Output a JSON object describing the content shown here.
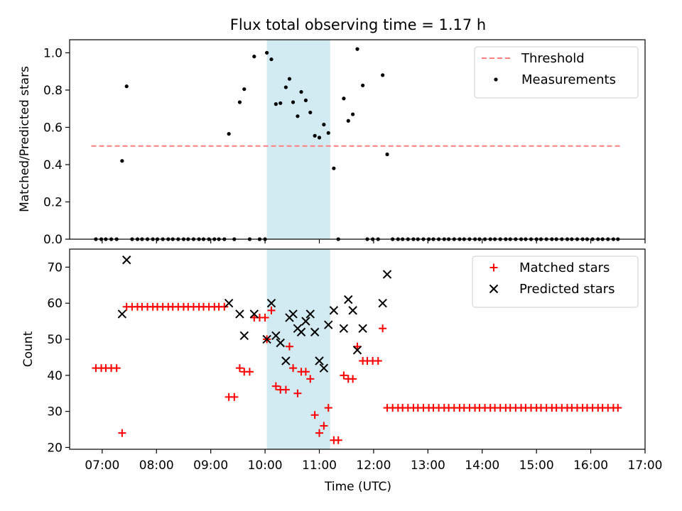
{
  "chart_data": [
    {
      "type": "scatter",
      "title": "Flux total observing time = 1.17 h",
      "xlabel": "",
      "ylabel": "Matched/Predicted stars",
      "xlim": [
        "06:24",
        "17:00"
      ],
      "ylim": [
        0,
        1.07
      ],
      "yticks": [
        0.0,
        0.2,
        0.4,
        0.6,
        0.8,
        1.0
      ],
      "ytick_labels": [
        "0.0",
        "0.2",
        "0.4",
        "0.6",
        "0.8",
        "1.0"
      ],
      "legend_position": "top-right",
      "shaded_span": [
        "10:02",
        "11:12"
      ],
      "shaded_color": "#add8e6",
      "threshold": {
        "name": "Threshold",
        "value": 0.5,
        "x_range": [
          "06:48",
          "16:33"
        ],
        "color": "#ff7f7f",
        "style": "dashed"
      },
      "series": [
        {
          "name": "Measurements",
          "color": "#000000",
          "marker": "dot",
          "points": [
            [
              "06:53",
              0.0
            ],
            [
              "06:59",
              0.0
            ],
            [
              "07:04",
              0.0
            ],
            [
              "07:10",
              0.0
            ],
            [
              "07:16",
              0.0
            ],
            [
              "07:22",
              0.42
            ],
            [
              "07:27",
              0.82
            ],
            [
              "07:33",
              0.0
            ],
            [
              "07:39",
              0.0
            ],
            [
              "07:44",
              0.0
            ],
            [
              "07:50",
              0.0
            ],
            [
              "07:56",
              0.0
            ],
            [
              "08:01",
              0.0
            ],
            [
              "08:07",
              0.0
            ],
            [
              "08:13",
              0.0
            ],
            [
              "08:18",
              0.0
            ],
            [
              "08:24",
              0.0
            ],
            [
              "08:30",
              0.0
            ],
            [
              "08:35",
              0.0
            ],
            [
              "08:41",
              0.0
            ],
            [
              "08:47",
              0.0
            ],
            [
              "08:52",
              0.0
            ],
            [
              "08:58",
              0.0
            ],
            [
              "09:04",
              0.0
            ],
            [
              "09:09",
              0.0
            ],
            [
              "09:15",
              0.0
            ],
            [
              "09:20",
              0.565
            ],
            [
              "09:26",
              0.0
            ],
            [
              "09:32",
              0.735
            ],
            [
              "09:37",
              0.805
            ],
            [
              "09:43",
              0.0
            ],
            [
              "09:48",
              0.98
            ],
            [
              "09:54",
              0.0
            ],
            [
              "10:00",
              0.0
            ],
            [
              "10:02",
              1.0
            ],
            [
              "10:07",
              0.965
            ],
            [
              "10:12",
              0.725
            ],
            [
              "10:17",
              0.73
            ],
            [
              "10:23",
              0.815
            ],
            [
              "10:27",
              0.86
            ],
            [
              "10:31",
              0.735
            ],
            [
              "10:36",
              0.66
            ],
            [
              "10:40",
              0.79
            ],
            [
              "10:45",
              0.745
            ],
            [
              "10:50",
              0.68
            ],
            [
              "10:55",
              0.555
            ],
            [
              "11:00",
              0.545
            ],
            [
              "11:05",
              0.615
            ],
            [
              "11:10",
              0.57
            ],
            [
              "11:16",
              0.38
            ],
            [
              "11:21",
              0.0
            ],
            [
              "11:27",
              0.755
            ],
            [
              "11:32",
              0.635
            ],
            [
              "11:37",
              0.67
            ],
            [
              "11:42",
              1.02
            ],
            [
              "11:48",
              0.825
            ],
            [
              "11:53",
              0.0
            ],
            [
              "11:59",
              0.0
            ],
            [
              "12:05",
              0.0
            ],
            [
              "12:10",
              0.88
            ],
            [
              "12:15",
              0.455
            ],
            [
              "12:21",
              0.0
            ],
            [
              "12:27",
              0.0
            ],
            [
              "12:32",
              0.0
            ],
            [
              "12:38",
              0.0
            ],
            [
              "12:44",
              0.0
            ],
            [
              "12:49",
              0.0
            ],
            [
              "12:55",
              0.0
            ],
            [
              "13:01",
              0.0
            ],
            [
              "13:06",
              0.0
            ],
            [
              "13:12",
              0.0
            ],
            [
              "13:18",
              0.0
            ],
            [
              "13:23",
              0.0
            ],
            [
              "13:29",
              0.0
            ],
            [
              "13:35",
              0.0
            ],
            [
              "13:40",
              0.0
            ],
            [
              "13:46",
              0.0
            ],
            [
              "13:52",
              0.0
            ],
            [
              "13:57",
              0.0
            ],
            [
              "14:03",
              0.0
            ],
            [
              "14:09",
              0.0
            ],
            [
              "14:14",
              0.0
            ],
            [
              "14:20",
              0.0
            ],
            [
              "14:26",
              0.0
            ],
            [
              "14:31",
              0.0
            ],
            [
              "14:37",
              0.0
            ],
            [
              "14:43",
              0.0
            ],
            [
              "14:48",
              0.0
            ],
            [
              "14:54",
              0.0
            ],
            [
              "15:00",
              0.0
            ],
            [
              "15:05",
              0.0
            ],
            [
              "15:11",
              0.0
            ],
            [
              "15:17",
              0.0
            ],
            [
              "15:22",
              0.0
            ],
            [
              "15:28",
              0.0
            ],
            [
              "15:34",
              0.0
            ],
            [
              "15:39",
              0.0
            ],
            [
              "15:45",
              0.0
            ],
            [
              "15:51",
              0.0
            ],
            [
              "15:56",
              0.0
            ],
            [
              "16:02",
              0.0
            ],
            [
              "16:08",
              0.0
            ],
            [
              "16:13",
              0.0
            ],
            [
              "16:19",
              0.0
            ],
            [
              "16:25",
              0.0
            ],
            [
              "16:30",
              0.0
            ]
          ]
        }
      ]
    },
    {
      "type": "scatter",
      "title": "",
      "xlabel": "Time (UTC)",
      "ylabel": "Count",
      "xlim": [
        "06:24",
        "17:00"
      ],
      "ylim": [
        19.5,
        75
      ],
      "yticks": [
        20,
        30,
        40,
        50,
        60,
        70
      ],
      "ytick_labels": [
        "20",
        "30",
        "40",
        "50",
        "60",
        "70"
      ],
      "xtick_labels": [
        "07:00",
        "08:00",
        "09:00",
        "10:00",
        "11:00",
        "12:00",
        "13:00",
        "14:00",
        "15:00",
        "16:00",
        "17:00"
      ],
      "legend_position": "top-right",
      "shaded_span": [
        "10:02",
        "11:12"
      ],
      "shaded_color": "#add8e6",
      "series": [
        {
          "name": "Matched stars",
          "color": "#ff0000",
          "marker": "plus",
          "points": [
            [
              "06:53",
              42
            ],
            [
              "06:59",
              42
            ],
            [
              "07:04",
              42
            ],
            [
              "07:10",
              42
            ],
            [
              "07:16",
              42
            ],
            [
              "07:22",
              24
            ],
            [
              "07:27",
              59
            ],
            [
              "07:33",
              59
            ],
            [
              "07:39",
              59
            ],
            [
              "07:44",
              59
            ],
            [
              "07:50",
              59
            ],
            [
              "07:56",
              59
            ],
            [
              "08:01",
              59
            ],
            [
              "08:07",
              59
            ],
            [
              "08:13",
              59
            ],
            [
              "08:18",
              59
            ],
            [
              "08:24",
              59
            ],
            [
              "08:30",
              59
            ],
            [
              "08:35",
              59
            ],
            [
              "08:41",
              59
            ],
            [
              "08:47",
              59
            ],
            [
              "08:52",
              59
            ],
            [
              "08:58",
              59
            ],
            [
              "09:04",
              59
            ],
            [
              "09:09",
              59
            ],
            [
              "09:15",
              59
            ],
            [
              "09:20",
              34
            ],
            [
              "09:26",
              34
            ],
            [
              "09:32",
              42
            ],
            [
              "09:37",
              41
            ],
            [
              "09:43",
              41
            ],
            [
              "09:48",
              56
            ],
            [
              "09:54",
              56
            ],
            [
              "10:00",
              56
            ],
            [
              "10:02",
              50
            ],
            [
              "10:07",
              58
            ],
            [
              "10:12",
              37
            ],
            [
              "10:17",
              36
            ],
            [
              "10:23",
              36
            ],
            [
              "10:27",
              48
            ],
            [
              "10:31",
              42
            ],
            [
              "10:36",
              35
            ],
            [
              "10:40",
              41
            ],
            [
              "10:45",
              41
            ],
            [
              "10:50",
              39
            ],
            [
              "10:55",
              29
            ],
            [
              "11:00",
              24
            ],
            [
              "11:05",
              26
            ],
            [
              "11:10",
              31
            ],
            [
              "11:16",
              22
            ],
            [
              "11:21",
              22
            ],
            [
              "11:27",
              40
            ],
            [
              "11:32",
              39
            ],
            [
              "11:37",
              39
            ],
            [
              "11:42",
              48
            ],
            [
              "11:48",
              44
            ],
            [
              "11:53",
              44
            ],
            [
              "11:59",
              44
            ],
            [
              "12:05",
              44
            ],
            [
              "12:10",
              53
            ],
            [
              "12:15",
              31
            ],
            [
              "12:21",
              31
            ],
            [
              "12:27",
              31
            ],
            [
              "12:32",
              31
            ],
            [
              "12:38",
              31
            ],
            [
              "12:44",
              31
            ],
            [
              "12:49",
              31
            ],
            [
              "12:55",
              31
            ],
            [
              "13:01",
              31
            ],
            [
              "13:06",
              31
            ],
            [
              "13:12",
              31
            ],
            [
              "13:18",
              31
            ],
            [
              "13:23",
              31
            ],
            [
              "13:29",
              31
            ],
            [
              "13:35",
              31
            ],
            [
              "13:40",
              31
            ],
            [
              "13:46",
              31
            ],
            [
              "13:52",
              31
            ],
            [
              "13:57",
              31
            ],
            [
              "14:03",
              31
            ],
            [
              "14:09",
              31
            ],
            [
              "14:14",
              31
            ],
            [
              "14:20",
              31
            ],
            [
              "14:26",
              31
            ],
            [
              "14:31",
              31
            ],
            [
              "14:37",
              31
            ],
            [
              "14:43",
              31
            ],
            [
              "14:48",
              31
            ],
            [
              "14:54",
              31
            ],
            [
              "15:00",
              31
            ],
            [
              "15:05",
              31
            ],
            [
              "15:11",
              31
            ],
            [
              "15:17",
              31
            ],
            [
              "15:22",
              31
            ],
            [
              "15:28",
              31
            ],
            [
              "15:34",
              31
            ],
            [
              "15:39",
              31
            ],
            [
              "15:45",
              31
            ],
            [
              "15:51",
              31
            ],
            [
              "15:56",
              31
            ],
            [
              "16:02",
              31
            ],
            [
              "16:08",
              31
            ],
            [
              "16:13",
              31
            ],
            [
              "16:19",
              31
            ],
            [
              "16:25",
              31
            ],
            [
              "16:30",
              31
            ]
          ]
        },
        {
          "name": "Predicted stars",
          "color": "#000000",
          "marker": "x",
          "points": [
            [
              "07:22",
              57
            ],
            [
              "07:27",
              72
            ],
            [
              "09:20",
              60
            ],
            [
              "09:32",
              57
            ],
            [
              "09:37",
              51
            ],
            [
              "09:48",
              57
            ],
            [
              "10:02",
              50
            ],
            [
              "10:07",
              60
            ],
            [
              "10:12",
              51
            ],
            [
              "10:17",
              49
            ],
            [
              "10:23",
              44
            ],
            [
              "10:27",
              56
            ],
            [
              "10:31",
              57
            ],
            [
              "10:36",
              53
            ],
            [
              "10:40",
              52
            ],
            [
              "10:45",
              55
            ],
            [
              "10:50",
              57
            ],
            [
              "10:55",
              52
            ],
            [
              "11:00",
              44
            ],
            [
              "11:05",
              42
            ],
            [
              "11:10",
              54
            ],
            [
              "11:16",
              58
            ],
            [
              "11:27",
              53
            ],
            [
              "11:32",
              61
            ],
            [
              "11:37",
              58
            ],
            [
              "11:42",
              47
            ],
            [
              "11:48",
              53
            ],
            [
              "12:10",
              60
            ],
            [
              "12:15",
              68
            ]
          ]
        }
      ]
    }
  ]
}
